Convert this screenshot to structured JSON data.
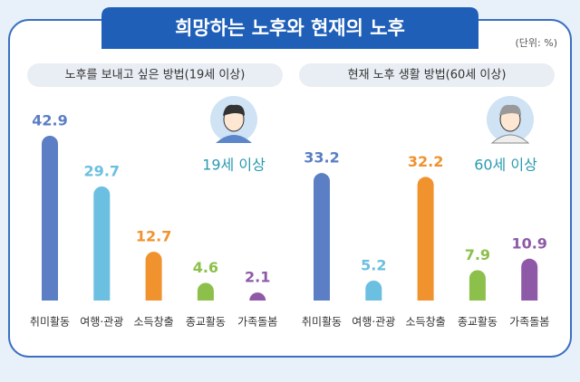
{
  "title": "희망하는 노후와 현재의 노후",
  "unit": "(단위: %)",
  "chart_data": [
    {
      "type": "bar",
      "title": "노후를 보내고 싶은 방법(19세 이상)",
      "annotation": "19세 이상",
      "categories": [
        "취미활동",
        "여행·관광",
        "소득창출",
        "종교활동",
        "가족돌봄"
      ],
      "values": [
        42.9,
        29.7,
        12.7,
        4.6,
        2.1
      ],
      "colors": [
        "#5b7ec4",
        "#6bbfe0",
        "#f0922e",
        "#8cc04a",
        "#8e5aa8"
      ]
    },
    {
      "type": "bar",
      "title": "현재 노후 생활 방법(60세 이상)",
      "annotation": "60세 이상",
      "categories": [
        "취미활동",
        "여행·관광",
        "소득창출",
        "종교활동",
        "가족돌봄"
      ],
      "values": [
        33.2,
        5.2,
        32.2,
        7.9,
        10.9
      ],
      "colors": [
        "#5b7ec4",
        "#6bbfe0",
        "#f0922e",
        "#8cc04a",
        "#8e5aa8"
      ]
    }
  ]
}
